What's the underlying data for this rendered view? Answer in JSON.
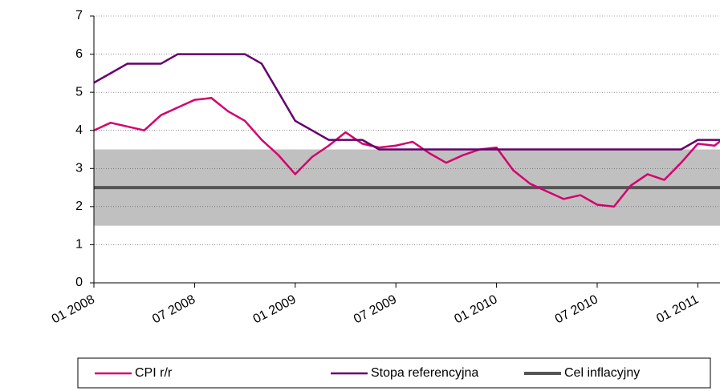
{
  "chart_data": {
    "type": "line",
    "categories": [
      "01 2008",
      null,
      null,
      null,
      null,
      null,
      "07 2008",
      null,
      null,
      null,
      null,
      null,
      "01 2009",
      null,
      null,
      null,
      null,
      null,
      "07 2009",
      null,
      null,
      null,
      null,
      null,
      "01 2010",
      null,
      null,
      null,
      null,
      null,
      "07 2010",
      null,
      null,
      null,
      null,
      null,
      "01 2011",
      null,
      null
    ],
    "series": [
      {
        "name": "CPI r/r",
        "color": "#d4006e",
        "values": [
          4.0,
          4.2,
          4.1,
          4.0,
          4.4,
          4.6,
          4.8,
          4.85,
          4.5,
          4.25,
          3.75,
          3.35,
          2.85,
          3.3,
          3.6,
          3.95,
          3.65,
          3.55,
          3.6,
          3.7,
          3.4,
          3.15,
          3.35,
          3.5,
          3.55,
          2.95,
          2.6,
          2.4,
          2.2,
          2.3,
          2.05,
          2.0,
          2.55,
          2.85,
          2.7,
          3.15,
          3.65,
          3.6,
          3.95
        ]
      },
      {
        "name": "Stopa referencyjna",
        "color": "#66006b",
        "values": [
          5.25,
          5.5,
          5.75,
          5.75,
          5.75,
          6.0,
          6.0,
          6.0,
          6.0,
          6.0,
          5.75,
          5.0,
          4.25,
          4.0,
          3.75,
          3.75,
          3.75,
          3.5,
          3.5,
          3.5,
          3.5,
          3.5,
          3.5,
          3.5,
          3.5,
          3.5,
          3.5,
          3.5,
          3.5,
          3.5,
          3.5,
          3.5,
          3.5,
          3.5,
          3.5,
          3.5,
          3.75,
          3.75,
          3.75
        ]
      },
      {
        "name": "Cel inflacyjny",
        "color": "#555555",
        "values": [
          2.5,
          2.5,
          2.5,
          2.5,
          2.5,
          2.5,
          2.5,
          2.5,
          2.5,
          2.5,
          2.5,
          2.5,
          2.5,
          2.5,
          2.5,
          2.5,
          2.5,
          2.5,
          2.5,
          2.5,
          2.5,
          2.5,
          2.5,
          2.5,
          2.5,
          2.5,
          2.5,
          2.5,
          2.5,
          2.5,
          2.5,
          2.5,
          2.5,
          2.5,
          2.5,
          2.5,
          2.5,
          2.5,
          2.5
        ]
      }
    ],
    "band": [
      1.5,
      3.5
    ],
    "band_color": "#c0c0c0",
    "ylim": [
      0,
      7
    ],
    "yticks": [
      0,
      1,
      2,
      3,
      4,
      5,
      6,
      7
    ],
    "grid": true,
    "legend": "bottom"
  }
}
